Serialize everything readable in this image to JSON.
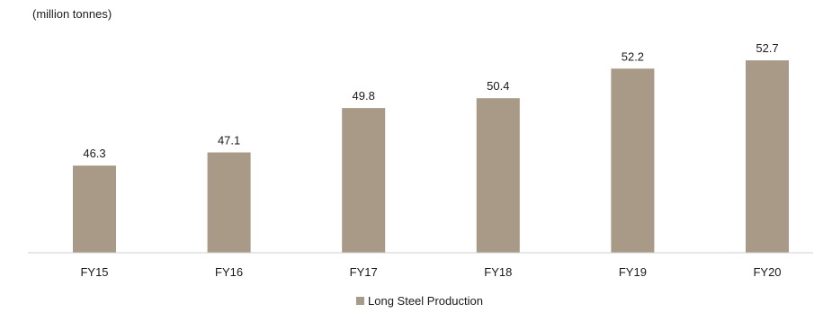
{
  "chart_data": {
    "type": "bar",
    "unit_label": "(million  tonnes)",
    "categories": [
      "FY15",
      "FY16",
      "FY17",
      "FY18",
      "FY19",
      "FY20"
    ],
    "series": [
      {
        "name": "Long Steel Production",
        "values": [
          46.3,
          47.1,
          49.8,
          50.4,
          52.2,
          52.7
        ],
        "color": "#a89a86"
      }
    ],
    "value_labels": [
      "46.3",
      "47.1",
      "49.8",
      "50.4",
      "52.2",
      "52.7"
    ],
    "ylim": [
      41.0,
      53.2
    ],
    "grid": false,
    "legend_position": "bottom-center",
    "axis_color": "#cfcfcf"
  }
}
